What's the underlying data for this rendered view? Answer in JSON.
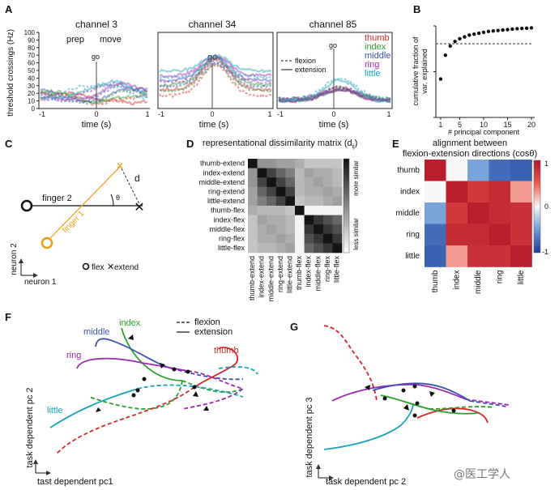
{
  "panels": {
    "A": {
      "label": "A",
      "ylabel": "threshold crossings (Hz)",
      "xlabel": "time (s)",
      "annotations": {
        "prep": "prep",
        "move": "move",
        "go": "go"
      },
      "legend_style": [
        {
          "name": "flexion",
          "style": "dashed"
        },
        {
          "name": "extension",
          "style": "solid"
        }
      ],
      "legend_fingers": [
        {
          "name": "thumb",
          "color": "#d62728"
        },
        {
          "name": "index",
          "color": "#2ca02c"
        },
        {
          "name": "middle",
          "color": "#3f4fb5"
        },
        {
          "name": "ring",
          "color": "#9c27b0"
        },
        {
          "name": "little",
          "color": "#17a2b8"
        }
      ]
    },
    "B": {
      "label": "B"
    },
    "C": {
      "label": "C",
      "finger2": "finger 2",
      "finger1": "finger 1",
      "theta": "θ",
      "d": "d",
      "neuron2": "neuron 2",
      "neuron1": "neuron 1",
      "legend_flex": "flex",
      "legend_extend": "extend",
      "colors": {
        "finger1": "#f39c12",
        "finger2": "#111111"
      }
    },
    "D": {
      "label": "D",
      "title": "representational dissimilarity matrix (d",
      "title_sub": "ij",
      "title_end": ")",
      "colorbar_top": "more similar",
      "colorbar_bottom": "less similar",
      "labels": [
        "thumb-extend",
        "index-extend",
        "middle-extend",
        "ring-extend",
        "little-extend",
        "thumb-flex",
        "index-flex",
        "middle-flex",
        "ring-flex",
        "little-flex"
      ],
      "values": [
        [
          0.0,
          0.55,
          0.55,
          0.6,
          0.6,
          0.65,
          0.75,
          0.75,
          0.75,
          0.75
        ],
        [
          0.55,
          0.0,
          0.2,
          0.35,
          0.45,
          0.7,
          0.6,
          0.65,
          0.65,
          0.7
        ],
        [
          0.55,
          0.2,
          0.0,
          0.2,
          0.35,
          0.7,
          0.65,
          0.6,
          0.65,
          0.7
        ],
        [
          0.6,
          0.35,
          0.2,
          0.0,
          0.2,
          0.7,
          0.65,
          0.65,
          0.6,
          0.65
        ],
        [
          0.6,
          0.45,
          0.35,
          0.2,
          0.0,
          0.75,
          0.7,
          0.7,
          0.65,
          0.6
        ],
        [
          0.65,
          0.7,
          0.7,
          0.7,
          0.75,
          0.0,
          0.95,
          0.95,
          0.95,
          0.95
        ],
        [
          0.75,
          0.6,
          0.65,
          0.65,
          0.7,
          0.95,
          0.0,
          0.15,
          0.25,
          0.35
        ],
        [
          0.75,
          0.65,
          0.6,
          0.65,
          0.7,
          0.95,
          0.15,
          0.0,
          0.15,
          0.25
        ],
        [
          0.75,
          0.65,
          0.65,
          0.6,
          0.65,
          0.95,
          0.25,
          0.15,
          0.0,
          0.15
        ],
        [
          0.75,
          0.7,
          0.7,
          0.65,
          0.6,
          0.95,
          0.35,
          0.25,
          0.15,
          0.0
        ]
      ]
    },
    "E": {
      "label": "E",
      "title_line1": "alignment between",
      "title_line2": "flexion-extension directions (cosθ)",
      "labels": [
        "thumb",
        "index",
        "middle",
        "ring",
        "little"
      ],
      "values": [
        [
          0.95,
          0.0,
          -0.45,
          -0.75,
          -0.8
        ],
        [
          0.0,
          0.95,
          0.75,
          0.85,
          0.3
        ],
        [
          -0.45,
          0.75,
          0.95,
          0.85,
          0.8
        ],
        [
          -0.75,
          0.85,
          0.85,
          0.95,
          0.8
        ],
        [
          -0.8,
          0.3,
          0.8,
          0.8,
          0.95
        ]
      ],
      "colorbar_ticks": [
        "1",
        "0",
        "-1"
      ]
    },
    "F": {
      "label": "F",
      "xlabel": "tast dependent pc1",
      "ylabel": "task dependent pc 2",
      "legend": [
        {
          "name": "flexion",
          "style": "dashed"
        },
        {
          "name": "extension",
          "style": "solid"
        }
      ],
      "finger_labels": [
        {
          "name": "index",
          "color": "#2ca02c"
        },
        {
          "name": "middle",
          "color": "#3f4fb5"
        },
        {
          "name": "ring",
          "color": "#9c27b0"
        },
        {
          "name": "thumb",
          "color": "#d62728"
        },
        {
          "name": "little",
          "color": "#17a2b8"
        }
      ]
    },
    "G": {
      "label": "G",
      "xlabel": "task dependent pc 2",
      "ylabel": "task dependent pc 3"
    }
  },
  "watermark": "@医工学人",
  "chart_data": [
    {
      "type": "line",
      "panel": "A",
      "title": "channel 3",
      "x": [
        -1,
        0,
        1
      ],
      "xlabel": "time (s)",
      "ylabel": "threshold crossings (Hz)",
      "xlim": [
        -1,
        1
      ],
      "ylim": [
        0,
        100
      ],
      "yticks": [
        0,
        10,
        20,
        30,
        40,
        50,
        60,
        70,
        80,
        90,
        100
      ]
    },
    {
      "type": "line",
      "panel": "A",
      "title": "channel 34",
      "x": [
        -1,
        0,
        1
      ],
      "xlabel": "time (s)",
      "xlim": [
        -1,
        1
      ],
      "ylim": [
        0,
        100
      ]
    },
    {
      "type": "line",
      "panel": "A",
      "title": "channel 85",
      "x": [
        -1,
        0,
        1
      ],
      "xlabel": "time (s)",
      "xlim": [
        -1,
        1
      ],
      "ylim": [
        0,
        100
      ]
    },
    {
      "type": "scatter",
      "panel": "B",
      "xlabel": "# principal component",
      "ylabel": "cumulative fraction of var. explained",
      "xlim": [
        0,
        20
      ],
      "ylim": [
        0,
        1
      ],
      "xticks": [
        1,
        5,
        10,
        15,
        20
      ],
      "yticks": [
        0,
        0.5,
        1
      ],
      "threshold": 0.9,
      "x": [
        1,
        2,
        3,
        4,
        5,
        6,
        7,
        8,
        9,
        10,
        11,
        12,
        13,
        14,
        15,
        16,
        17,
        18,
        19,
        20
      ],
      "y": [
        0.42,
        0.68,
        0.78,
        0.83,
        0.86,
        0.88,
        0.9,
        0.91,
        0.92,
        0.93,
        0.94,
        0.945,
        0.95,
        0.955,
        0.96,
        0.965,
        0.97,
        0.972,
        0.975,
        0.978
      ]
    }
  ]
}
